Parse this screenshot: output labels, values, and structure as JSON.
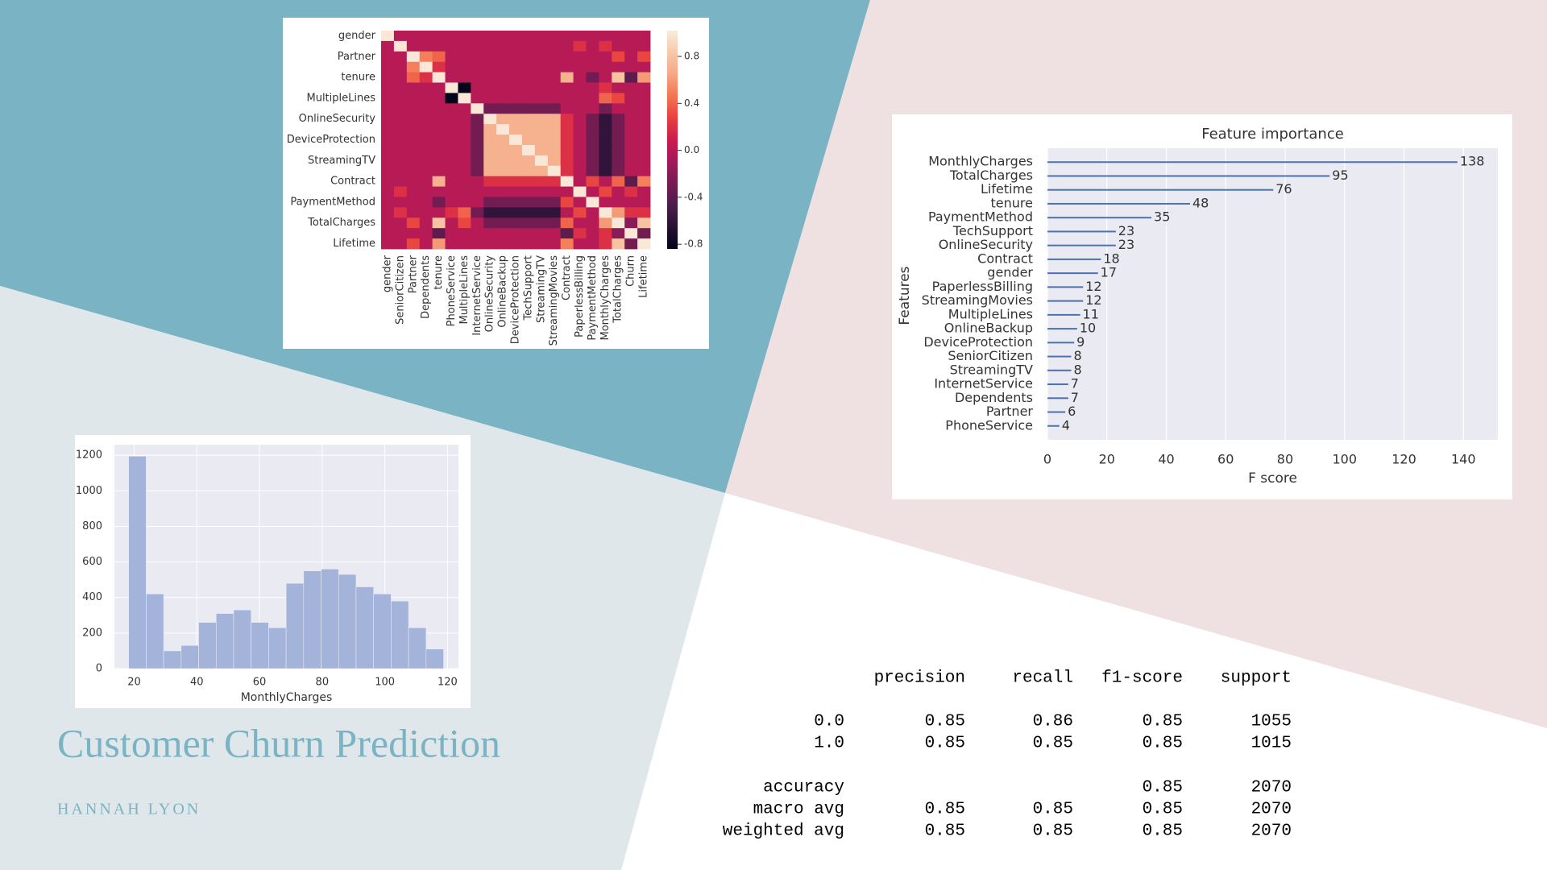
{
  "title": "Customer Churn Prediction",
  "author": "HANNAH LYON",
  "chart_data": [
    {
      "type": "heatmap",
      "x": [
        "gender",
        "SeniorCitizen",
        "Partner",
        "Dependents",
        "tenure",
        "PhoneService",
        "MultipleLines",
        "InternetService",
        "OnlineSecurity",
        "OnlineBackup",
        "DeviceProtection",
        "TechSupport",
        "StreamingTV",
        "StreamingMovies",
        "Contract",
        "PaperlessBilling",
        "PaymentMethod",
        "MonthlyCharges",
        "TotalCharges",
        "Churn",
        "Lifetime"
      ],
      "y": [
        "gender",
        null,
        "Partner",
        null,
        "tenure",
        null,
        "MultipleLines",
        null,
        "OnlineSecurity",
        null,
        "DeviceProtection",
        null,
        "StreamingTV",
        null,
        "Contract",
        null,
        "PaymentMethod",
        null,
        "TotalCharges",
        null,
        "Lifetime"
      ],
      "values": [
        [
          1,
          0,
          0,
          0,
          0,
          0,
          0,
          0,
          0,
          0,
          0,
          0,
          0,
          0,
          0,
          0,
          0,
          0,
          0,
          0,
          0
        ],
        [
          0,
          1,
          0,
          0,
          0,
          0,
          0,
          0,
          0,
          0,
          0,
          0,
          0,
          0,
          0,
          0.2,
          0,
          0.2,
          0,
          0,
          0
        ],
        [
          0,
          0,
          1,
          0.5,
          0.4,
          0,
          0,
          0,
          0,
          0,
          0,
          0,
          0,
          0,
          0,
          0,
          0,
          0,
          0.3,
          0,
          0.3
        ],
        [
          0,
          0,
          0.5,
          1,
          0.2,
          0,
          0,
          0,
          0,
          0,
          0,
          0,
          0,
          0,
          0,
          0,
          0,
          0,
          0,
          0,
          0
        ],
        [
          0,
          0,
          0.4,
          0.2,
          1,
          0,
          0,
          0,
          0,
          0,
          0,
          0,
          0,
          0,
          0.7,
          0,
          -0.3,
          0,
          0.8,
          -0.4,
          0.6
        ],
        [
          0,
          0,
          0,
          0,
          0,
          1,
          -0.9,
          0,
          0,
          0,
          0,
          0,
          0,
          0,
          0,
          0,
          0,
          0.2,
          0,
          0,
          0
        ],
        [
          0,
          0,
          0,
          0,
          0,
          -0.9,
          1,
          0,
          0,
          0,
          0,
          0,
          0,
          0,
          0,
          0,
          0,
          0.4,
          0.3,
          0,
          0
        ],
        [
          0,
          0,
          0,
          0,
          0,
          0,
          0,
          1,
          -0.3,
          -0.3,
          -0.3,
          -0.3,
          -0.3,
          -0.3,
          0,
          0,
          0,
          -0.3,
          0,
          0,
          0
        ],
        [
          0,
          0,
          0,
          0,
          0,
          0,
          0,
          -0.3,
          1,
          0.7,
          0.7,
          0.7,
          0.7,
          0.7,
          0.2,
          0,
          -0.3,
          -0.6,
          -0.3,
          0,
          0
        ],
        [
          0,
          0,
          0,
          0,
          0,
          0,
          0,
          -0.3,
          0.7,
          1,
          0.7,
          0.7,
          0.7,
          0.7,
          0.2,
          0,
          -0.3,
          -0.6,
          -0.3,
          0,
          0
        ],
        [
          0,
          0,
          0,
          0,
          0,
          0,
          0,
          -0.3,
          0.7,
          0.7,
          1,
          0.7,
          0.7,
          0.7,
          0.2,
          0,
          -0.3,
          -0.6,
          -0.3,
          0,
          0
        ],
        [
          0,
          0,
          0,
          0,
          0,
          0,
          0,
          -0.3,
          0.7,
          0.7,
          0.7,
          1,
          0.7,
          0.7,
          0.2,
          0,
          -0.3,
          -0.6,
          -0.3,
          0,
          0
        ],
        [
          0,
          0,
          0,
          0,
          0,
          0,
          0,
          -0.3,
          0.7,
          0.7,
          0.7,
          0.7,
          1,
          0.7,
          0.2,
          0,
          -0.3,
          -0.6,
          -0.3,
          0,
          0
        ],
        [
          0,
          0,
          0,
          0,
          0,
          0,
          0,
          -0.3,
          0.7,
          0.7,
          0.7,
          0.7,
          0.7,
          1,
          0.2,
          0,
          -0.3,
          -0.6,
          -0.3,
          0,
          0
        ],
        [
          0,
          0,
          0,
          0,
          0.7,
          0,
          0,
          0,
          0.2,
          0.2,
          0.2,
          0.2,
          0.2,
          0.2,
          1,
          0,
          0.3,
          0,
          0.4,
          -0.4,
          0.5
        ],
        [
          0,
          0.2,
          0,
          0,
          0,
          0,
          0,
          0,
          0,
          0,
          0,
          0,
          0,
          0,
          0,
          1,
          0,
          0.3,
          0,
          0.2,
          0
        ],
        [
          0,
          0,
          0,
          0,
          -0.3,
          0,
          0,
          0,
          -0.3,
          -0.3,
          -0.3,
          -0.3,
          -0.3,
          -0.3,
          0.3,
          0,
          1,
          0,
          0,
          0,
          0
        ],
        [
          0,
          0.2,
          0,
          0,
          0,
          0.2,
          0.4,
          -0.3,
          -0.6,
          -0.6,
          -0.6,
          -0.6,
          -0.6,
          -0.6,
          0,
          0.3,
          0,
          1,
          0.6,
          0.2,
          0.2
        ],
        [
          0,
          0,
          0.3,
          0,
          0.8,
          0,
          0.3,
          0,
          -0.3,
          -0.3,
          -0.3,
          -0.3,
          -0.3,
          -0.3,
          0.4,
          0,
          0,
          0.6,
          1,
          -0.2,
          0.8
        ],
        [
          0,
          0,
          0,
          0,
          -0.4,
          0,
          0,
          0,
          0,
          0,
          0,
          0,
          0,
          0,
          -0.4,
          0.2,
          0,
          0.2,
          -0.2,
          1,
          -0.3
        ],
        [
          0,
          0,
          0.3,
          0,
          0.6,
          0,
          0,
          0,
          0,
          0,
          0,
          0,
          0,
          0,
          0.5,
          0,
          0,
          0.2,
          0.8,
          -0.3,
          1
        ]
      ],
      "colormap": "rocket",
      "zlim": [
        -0.84,
        1.02
      ],
      "zticks": [
        0.8,
        0.4,
        {
          "value": 0,
          "label": "0.0"
        },
        -0.4,
        -0.8
      ]
    },
    {
      "type": "bar",
      "orientation": "horizontal",
      "title": "Feature importance",
      "xlabel": "F score",
      "ylabel": "Features",
      "categories": [
        "MonthlyCharges",
        "TotalCharges",
        "Lifetime",
        "tenure",
        "PaymentMethod",
        "TechSupport",
        "OnlineSecurity",
        "Contract",
        "gender",
        "PaperlessBilling",
        "StreamingMovies",
        "MultipleLines",
        "OnlineBackup",
        "DeviceProtection",
        "SeniorCitizen",
        "StreamingTV",
        "InternetService",
        "Dependents",
        "Partner",
        "PhoneService"
      ],
      "values": [
        138,
        95,
        76,
        48,
        35,
        23,
        23,
        18,
        17,
        12,
        12,
        11,
        10,
        9,
        8,
        8,
        7,
        7,
        6,
        4
      ],
      "color": "#4c72b0",
      "xlim": [
        0,
        151.6
      ],
      "xticks": [
        0,
        20,
        40,
        60,
        80,
        100,
        120,
        140
      ],
      "grid": true
    },
    {
      "type": "histogram",
      "xlabel": "MonthlyCharges",
      "bins": [
        18.25,
        23.83,
        29.42,
        35.0,
        40.58,
        46.17,
        51.75,
        57.33,
        62.92,
        68.5,
        74.08,
        79.67,
        85.25,
        90.83,
        96.42,
        102.0,
        107.58,
        113.17,
        118.75
      ],
      "values": [
        1195,
        420,
        100,
        130,
        260,
        310,
        330,
        260,
        230,
        480,
        550,
        560,
        530,
        460,
        420,
        380,
        230,
        110
      ],
      "color": "#a4b3d9",
      "xlim": [
        13.7,
        123.5
      ],
      "xticks": [
        20,
        40,
        60,
        80,
        100,
        120
      ],
      "ylim": [
        0,
        1260
      ],
      "yticks": [
        0,
        200,
        400,
        600,
        800,
        1000,
        1200
      ],
      "grid": true
    }
  ],
  "table": {
    "header": [
      "precision",
      "recall",
      "f1-score",
      "support"
    ],
    "rows": [
      [
        "0.0",
        "0.85",
        "0.86",
        "0.85",
        "1055"
      ],
      [
        "1.0",
        "0.85",
        "0.85",
        "0.85",
        "1015"
      ],
      [
        "accuracy",
        null,
        null,
        "0.85",
        "2070"
      ],
      [
        "macro avg",
        "0.85",
        "0.85",
        "0.85",
        "2070"
      ],
      [
        "weighted avg",
        "0.85",
        "0.85",
        "0.85",
        "2070"
      ]
    ]
  }
}
